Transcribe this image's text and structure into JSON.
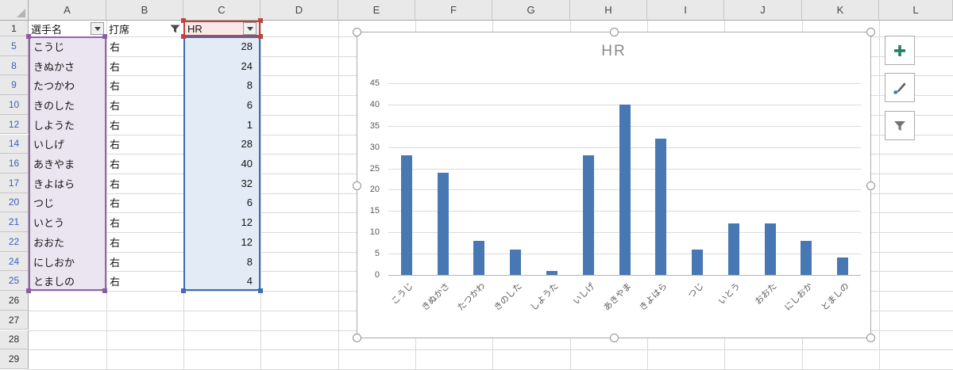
{
  "sheet": {
    "column_letters": [
      "A",
      "B",
      "C",
      "D",
      "E",
      "F",
      "G",
      "H",
      "I",
      "J",
      "K",
      "L"
    ],
    "header_row": {
      "row_number": "1",
      "player_label": "選手名",
      "bat_label": "打席",
      "hr_label": "HR"
    },
    "filter_icons": {
      "player": "dropdown-arrow-icon",
      "bat": "funnel-filter-applied-icon",
      "hr": "dropdown-arrow-icon"
    },
    "rows": [
      {
        "num": "5",
        "player": "こうじ",
        "bat": "右",
        "hr": "28"
      },
      {
        "num": "8",
        "player": "きぬかさ",
        "bat": "右",
        "hr": "24"
      },
      {
        "num": "9",
        "player": "たつかわ",
        "bat": "右",
        "hr": "8"
      },
      {
        "num": "10",
        "player": "きのした",
        "bat": "右",
        "hr": "6"
      },
      {
        "num": "12",
        "player": "しようた",
        "bat": "右",
        "hr": "1"
      },
      {
        "num": "14",
        "player": "いしげ",
        "bat": "右",
        "hr": "28"
      },
      {
        "num": "16",
        "player": "あきやま",
        "bat": "右",
        "hr": "40"
      },
      {
        "num": "17",
        "player": "きよはら",
        "bat": "右",
        "hr": "32"
      },
      {
        "num": "20",
        "player": "つじ",
        "bat": "右",
        "hr": "6"
      },
      {
        "num": "21",
        "player": "いとう",
        "bat": "右",
        "hr": "12"
      },
      {
        "num": "22",
        "player": "おおた",
        "bat": "右",
        "hr": "12"
      },
      {
        "num": "24",
        "player": "にしおか",
        "bat": "右",
        "hr": "8"
      },
      {
        "num": "25",
        "player": "とましの",
        "bat": "右",
        "hr": "4"
      }
    ],
    "empty_row_numbers": [
      "26",
      "27",
      "28",
      "29"
    ]
  },
  "chart_data": {
    "type": "bar",
    "title": "HR",
    "categories": [
      "こうじ",
      "きぬかさ",
      "たつかわ",
      "きのした",
      "しようた",
      "いしげ",
      "あきやま",
      "きよはら",
      "つじ",
      "いとう",
      "おおた",
      "にしおか",
      "とましの"
    ],
    "values": [
      28,
      24,
      8,
      6,
      1,
      28,
      40,
      32,
      6,
      12,
      12,
      8,
      4
    ],
    "xlabel": "",
    "ylabel": "",
    "ylim": [
      0,
      45
    ],
    "ytick_step": 5,
    "grid": true,
    "legend": "none",
    "bar_color": "#4878b4",
    "title_color": "#8a8a8a",
    "axis_text_color": "#595959"
  },
  "chart_tools": {
    "add_button_icon": "plus-icon",
    "style_button_icon": "paintbrush-icon",
    "filter_button_icon": "funnel-icon",
    "plus_color": "#238262"
  },
  "colors": {
    "category_range_border": "#9265ab",
    "category_range_fill": "#ebe5f2",
    "value_range_border": "#3e6db5",
    "value_range_fill": "#e3ecf6",
    "series_name_border": "#bc4540",
    "series_name_fill": "#f8e9e8",
    "filtered_row_number": "#3a5dbe"
  }
}
